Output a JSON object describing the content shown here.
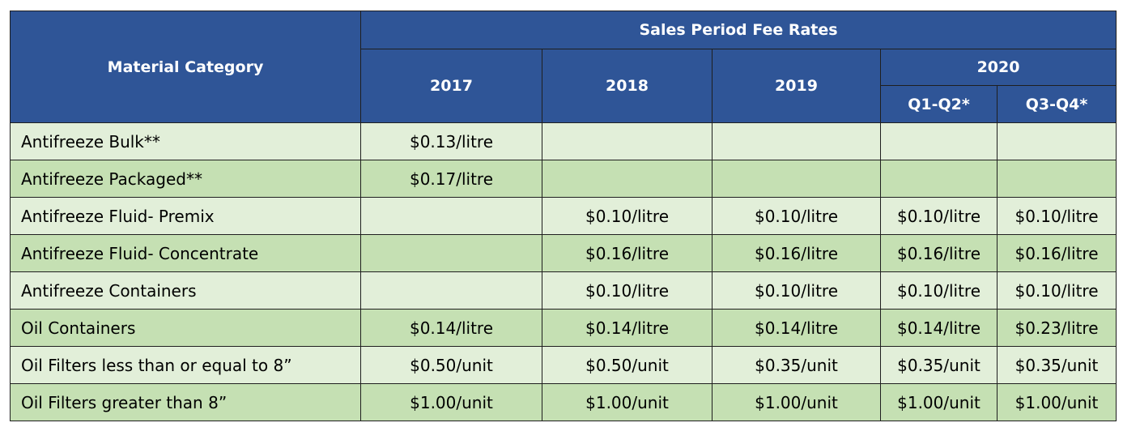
{
  "table": {
    "header_category": "Material Category",
    "header_group": "Sales Period Fee Rates",
    "years": [
      "2017",
      "2018",
      "2019"
    ],
    "year_2020": "2020",
    "quarters": [
      "Q1-Q2*",
      "Q3-Q4*"
    ],
    "rows": [
      {
        "category": "Antifreeze Bulk**",
        "values": [
          "$0.13/litre",
          "",
          "",
          "",
          ""
        ]
      },
      {
        "category": "Antifreeze Packaged**",
        "values": [
          "$0.17/litre",
          "",
          "",
          "",
          ""
        ]
      },
      {
        "category": "Antifreeze Fluid- Premix",
        "values": [
          "",
          "$0.10/litre",
          "$0.10/litre",
          "$0.10/litre",
          "$0.10/litre"
        ]
      },
      {
        "category": "Antifreeze Fluid- Concentrate",
        "values": [
          "",
          "$0.16/litre",
          "$0.16/litre",
          "$0.16/litre",
          "$0.16/litre"
        ]
      },
      {
        "category": "Antifreeze Containers",
        "values": [
          "",
          "$0.10/litre",
          "$0.10/litre",
          "$0.10/litre",
          "$0.10/litre"
        ]
      },
      {
        "category": "Oil Containers",
        "values": [
          "$0.14/litre",
          "$0.14/litre",
          "$0.14/litre",
          "$0.14/litre",
          "$0.23/litre"
        ]
      },
      {
        "category": "Oil Filters less than or equal to 8”",
        "values": [
          "$0.50/unit",
          "$0.50/unit",
          "$0.35/unit",
          "$0.35/unit",
          "$0.35/unit"
        ]
      },
      {
        "category": "Oil Filters greater than 8”",
        "values": [
          "$1.00/unit",
          "$1.00/unit",
          "$1.00/unit",
          "$1.00/unit",
          "$1.00/unit"
        ]
      }
    ]
  },
  "colors": {
    "header_bg": "#2f5597",
    "header_text": "#ffffff",
    "row_light": "#e2efd9",
    "row_dark": "#c5e0b3",
    "border": "#1f1f1f"
  }
}
